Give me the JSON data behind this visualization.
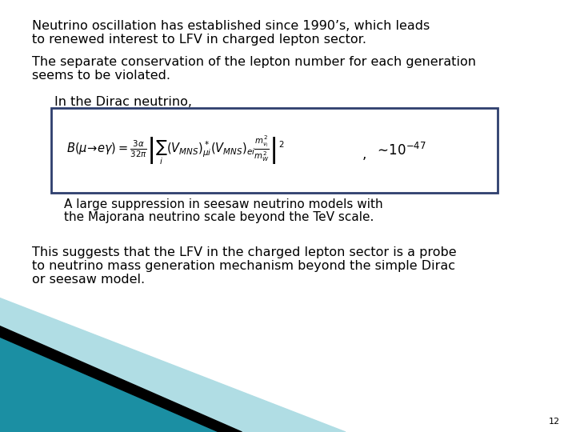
{
  "bg_color": "#ffffff",
  "text_color": "#000000",
  "slide_number": "12",
  "para1_line1": "Neutrino oscillation has established since 1990’s, which leads",
  "para1_line2": "to renewed interest to LFV in charged lepton sector.",
  "para2_line1": "The separate conservation of the lepton number for each generation",
  "para2_line2": "seems to be violated.",
  "dirac_label": "In the Dirac neutrino,",
  "approx": "$\\sim\\!10^{-47}$",
  "box_color": "#2e3f6e",
  "caption_line1": "A large suppression in seesaw neutrino models with",
  "caption_line2": "the Majorana neutrino scale beyond the TeV scale.",
  "para3_line1": "This suggests that the LFV in the charged lepton sector is a probe",
  "para3_line2": "to neutrino mass generation mechanism beyond the simple Dirac",
  "para3_line3": "or seesaw model.",
  "corner_teal": "#1b8fa3",
  "corner_black": "#000000",
  "corner_light_teal": "#b0dde4",
  "font_size_main": 11.5,
  "font_size_formula": 10.5,
  "font_size_approx": 12,
  "font_size_caption": 11,
  "font_size_slide_num": 8
}
